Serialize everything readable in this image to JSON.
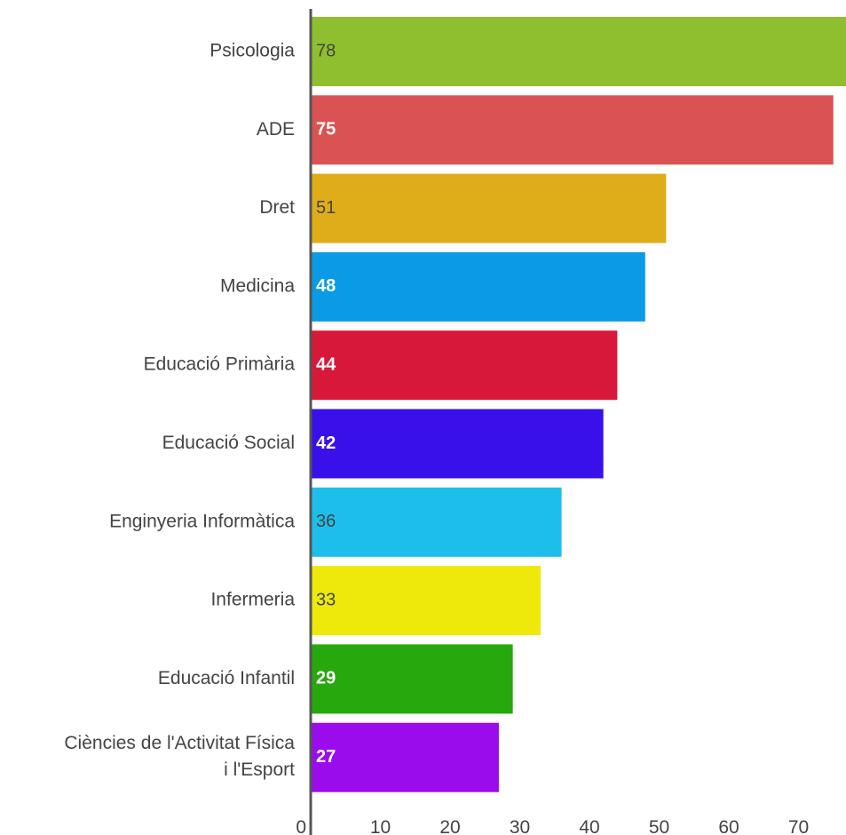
{
  "chart_data": {
    "type": "bar",
    "orientation": "horizontal",
    "categories": [
      "Psicologia",
      "ADE",
      "Dret",
      "Medicina",
      "Educació Primària",
      "Educació Social",
      "Enginyeria Informàtica",
      "Infermeria",
      "Educació Infantil",
      "Ciències de l'Activitat Física i l'Esport"
    ],
    "category_lines": [
      [
        "Psicologia"
      ],
      [
        "ADE"
      ],
      [
        "Dret"
      ],
      [
        "Medicina"
      ],
      [
        "Educació Primària"
      ],
      [
        "Educació Social"
      ],
      [
        "Enginyeria Informàtica"
      ],
      [
        "Infermeria"
      ],
      [
        "Educació Infantil"
      ],
      [
        "Ciències de l'Activitat Física",
        "i l'Esport"
      ]
    ],
    "values": [
      78,
      75,
      51,
      48,
      44,
      42,
      36,
      33,
      29,
      27
    ],
    "colors": [
      "#8fbf2f",
      "#da5353",
      "#e0ad1a",
      "#0b9be6",
      "#d8183a",
      "#3a10ea",
      "#1ebeeb",
      "#eee90a",
      "#27a80c",
      "#9a0cec"
    ],
    "label_colors": [
      "#444444",
      "#ffffff",
      "#444444",
      "#ffffff",
      "#ffffff",
      "#ffffff",
      "#444444",
      "#444444",
      "#ffffff",
      "#ffffff"
    ],
    "label_bold": [
      false,
      true,
      false,
      true,
      true,
      true,
      false,
      false,
      true,
      true
    ],
    "x_ticks": [
      "0",
      "10",
      "20",
      "30",
      "40",
      "50",
      "60",
      "70"
    ],
    "x_tick_values": [
      0,
      10,
      20,
      30,
      40,
      50,
      60,
      70
    ],
    "xlim": [
      0,
      76
    ],
    "title": "",
    "xlabel": "",
    "ylabel": "",
    "grid": false,
    "legend": false
  }
}
